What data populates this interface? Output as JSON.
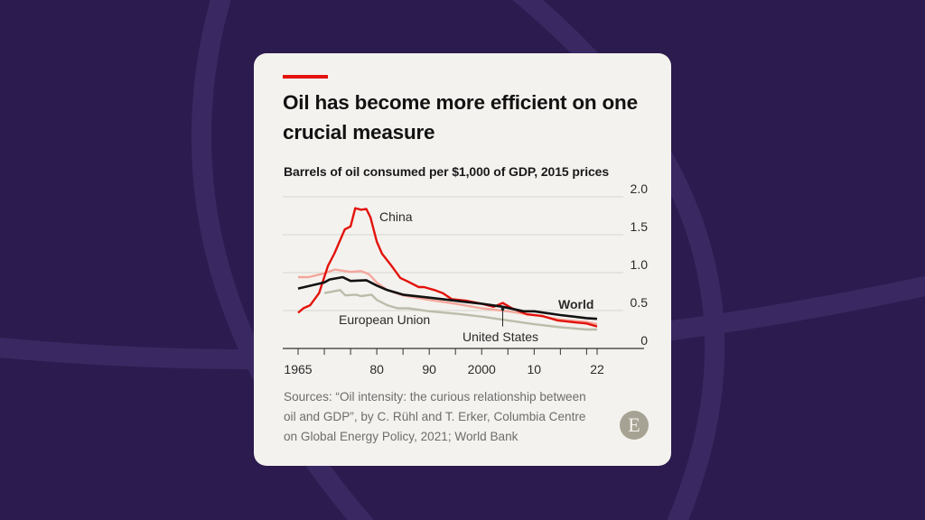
{
  "card": {
    "title": "Oil has become more efficient on one crucial measure",
    "subtitle": "Barrels of oil consumed per $1,000 of GDP, 2015 prices",
    "sources": "Sources: “Oil intensity: the curious relationship between oil and GDP”, by C. Rühl and T. Erker, Columbia Centre on Global Energy Policy, 2021; World Bank",
    "logo_letter": "E",
    "accent_color": "#e3120b",
    "background_color": "#2c1b4e"
  },
  "chart_data": {
    "type": "line",
    "title": "Oil has become more efficient on one crucial measure",
    "subtitle": "Barrels of oil consumed per $1,000 of GDP, 2015 prices",
    "xlim": [
      1965,
      2022
    ],
    "ylim": [
      0,
      2.0
    ],
    "y_ticks": [
      {
        "value": 0,
        "label": "0"
      },
      {
        "value": 0.5,
        "label": "0.5"
      },
      {
        "value": 1.0,
        "label": "1.0"
      },
      {
        "value": 1.5,
        "label": "1.5"
      },
      {
        "value": 2.0,
        "label": "2.0"
      }
    ],
    "x_tick_marks": [
      1965,
      1970,
      1975,
      1980,
      1985,
      1990,
      1995,
      2000,
      2005,
      2010,
      2015,
      2020,
      2022
    ],
    "x_ticks": [
      {
        "value": 1965,
        "label": "1965"
      },
      {
        "value": 1980,
        "label": "80"
      },
      {
        "value": 1990,
        "label": "90"
      },
      {
        "value": 2000,
        "label": "2000"
      },
      {
        "value": 2010,
        "label": "10"
      },
      {
        "value": 2022,
        "label": "22"
      }
    ],
    "grid": true,
    "y_axis_position": "right",
    "series": [
      {
        "name": "European Union",
        "color": "#bcbcab",
        "x": [
          1970,
          1973,
          1974,
          1976,
          1977,
          1979,
          1980,
          1982,
          1984,
          1986,
          1990,
          1995,
          2000,
          2005,
          2010,
          2015,
          2020,
          2022
        ],
        "y": [
          0.73,
          0.77,
          0.7,
          0.71,
          0.69,
          0.71,
          0.64,
          0.57,
          0.53,
          0.53,
          0.49,
          0.46,
          0.42,
          0.37,
          0.32,
          0.28,
          0.25,
          0.25
        ]
      },
      {
        "name": "United States",
        "color": "#f4a79d",
        "x": [
          1965,
          1967,
          1970,
          1972,
          1975,
          1977,
          1978.5,
          1980,
          1982,
          1985,
          1990,
          1995,
          2000,
          2005,
          2010,
          2015,
          2020,
          2022
        ],
        "y": [
          0.94,
          0.94,
          0.99,
          1.04,
          1.01,
          1.02,
          0.98,
          0.87,
          0.77,
          0.7,
          0.64,
          0.59,
          0.53,
          0.49,
          0.44,
          0.38,
          0.35,
          0.32
        ]
      },
      {
        "name": "China",
        "color": "#e3120b",
        "x": [
          1965,
          1966,
          1967.3,
          1969,
          1970.7,
          1971.9,
          1973.9,
          1975,
          1975.9,
          1977,
          1978,
          1978.8,
          1980,
          1981,
          1982.8,
          1984.5,
          1985.7,
          1988,
          1989,
          1991,
          1992.6,
          1994.3,
          1997,
          2000,
          2002.3,
          2004,
          2005.8,
          2008.6,
          2011.5,
          2014.4,
          2017,
          2020,
          2022
        ],
        "y": [
          0.47,
          0.53,
          0.57,
          0.73,
          1.09,
          1.25,
          1.57,
          1.61,
          1.85,
          1.83,
          1.84,
          1.73,
          1.41,
          1.25,
          1.09,
          0.93,
          0.89,
          0.81,
          0.81,
          0.77,
          0.73,
          0.65,
          0.63,
          0.59,
          0.55,
          0.6,
          0.53,
          0.45,
          0.43,
          0.37,
          0.35,
          0.33,
          0.29
        ]
      },
      {
        "name": "World",
        "color": "#121212",
        "x": [
          1965,
          1970,
          1971,
          1973.5,
          1975,
          1978,
          1980,
          1982,
          1985,
          1990,
          1995,
          2000,
          2004,
          2008,
          2010,
          2015,
          2020,
          2022
        ],
        "y": [
          0.79,
          0.87,
          0.91,
          0.94,
          0.89,
          0.9,
          0.83,
          0.77,
          0.71,
          0.67,
          0.63,
          0.59,
          0.55,
          0.49,
          0.49,
          0.44,
          0.4,
          0.39
        ]
      }
    ],
    "annotations": [
      {
        "text": "China",
        "series": "China"
      },
      {
        "text": "World",
        "series": "World"
      },
      {
        "text": "European Union",
        "series": "European Union"
      },
      {
        "text": "United States",
        "series": "United States",
        "leader_x": 2004
      }
    ]
  }
}
